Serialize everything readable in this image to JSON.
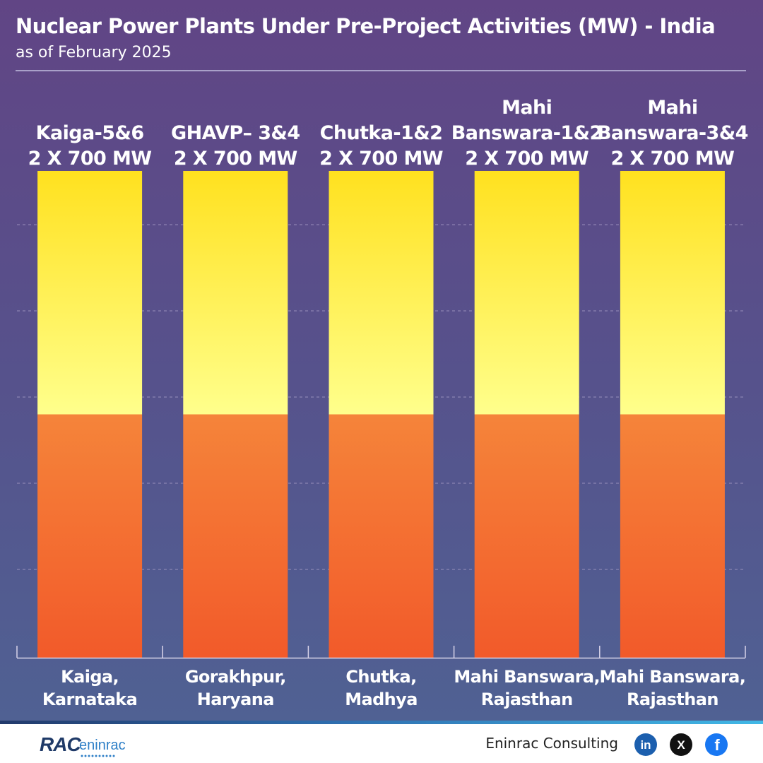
{
  "header": {
    "title": "Nuclear Power Plants Under Pre-Project Activities (MW) - India",
    "subtitle": "as of February 2025"
  },
  "chart_data": {
    "type": "bar",
    "title": "Nuclear Power Plants Under Pre-Project Activities (MW) - India",
    "subtitle": "as of February 2025",
    "categories": [
      "Kaiga, Karnataka",
      "Gorakhpur, Haryana",
      "Chutka, Madhya",
      "Mahi Banswara, Rajasthan",
      "Mahi Banswara, Rajasthan"
    ],
    "category_lines": [
      [
        "Kaiga,",
        "Karnataka"
      ],
      [
        "Gorakhpur,",
        "Haryana"
      ],
      [
        "Chutka,",
        "Madhya"
      ],
      [
        "Mahi Banswara,",
        "Rajasthan"
      ],
      [
        "Mahi Banswara,",
        "Rajasthan"
      ]
    ],
    "data_labels": [
      [
        "Kaiga-5&6",
        "2 X 700 MW"
      ],
      [
        "GHAVP– 3&4",
        "2 X 700 MW"
      ],
      [
        "Chutka-1&2",
        "2 X 700 MW"
      ],
      [
        "Mahi",
        "Banswara-1&2",
        "2 X 700 MW"
      ],
      [
        "Mahi",
        "Banswara-3&4",
        "2 X 700 MW"
      ]
    ],
    "series": [
      {
        "values": [
          700,
          700,
          700,
          700,
          700
        ],
        "color_top": "#f5843a",
        "color_bottom": "#f25a2a"
      },
      {
        "values": [
          700,
          700,
          700,
          700,
          700
        ],
        "color_top": "#ffe11f",
        "color_bottom": "#ffff8c"
      }
    ],
    "stacked": true,
    "ylim": [
      0,
      1400
    ],
    "grid": true,
    "xlabel": "",
    "ylabel": ""
  },
  "colors": {
    "label": "#ffffff",
    "grid": "#a99fc7",
    "axis": "#d9d4ea"
  },
  "footer": {
    "company": "Eninrac Consulting",
    "logo_text": "RAC",
    "logo_subtext": "eninrac",
    "social": [
      {
        "icon": "linkedin-icon",
        "glyph": "in",
        "color": "#1c5fae"
      },
      {
        "icon": "x-icon",
        "glyph": "X",
        "color": "#111111"
      },
      {
        "icon": "facebook-icon",
        "glyph": "f",
        "color": "#1877f2"
      }
    ]
  }
}
